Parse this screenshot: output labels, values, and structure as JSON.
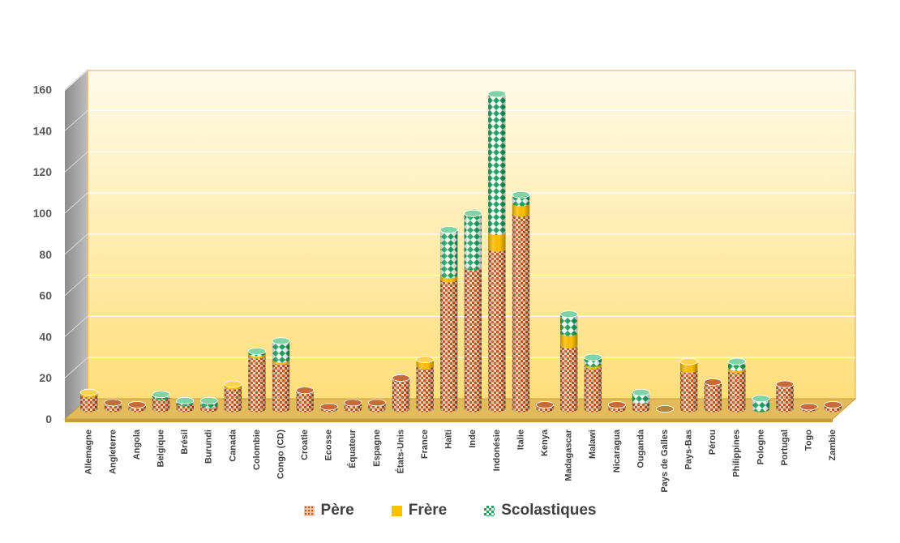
{
  "chart_data": {
    "type": "bar",
    "stacked": true,
    "three_d": true,
    "title": "",
    "xlabel": "",
    "ylabel": "",
    "ylim": [
      0,
      160
    ],
    "yticks": [
      0,
      20,
      40,
      60,
      80,
      100,
      120,
      140,
      160
    ],
    "grid": true,
    "legend_position": "bottom",
    "categories": [
      "Allemagne",
      "Angleterre",
      "Angola",
      "Belgique",
      "Brésil",
      "Burundi",
      "Canada",
      "Colombie",
      "Congo (CD)",
      "Croatie",
      "Ecosse",
      "Équateur",
      "Espagne",
      "États-Unis",
      "France",
      "Haïti",
      "Inde",
      "Indonésie",
      "Italie",
      "Kenya",
      "Madagascar",
      "Malawi",
      "Nicaragua",
      "Ouganda",
      "Pays de Galles",
      "Pays-Bas",
      "Pérou",
      "Philippines",
      "Pologne",
      "Portugal",
      "Togo",
      "Zambie"
    ],
    "series": [
      {
        "name": "Père",
        "color": "#c1531a",
        "values": [
          7,
          3,
          2,
          6,
          3,
          2,
          11,
          26,
          23,
          9,
          1,
          3,
          3,
          15,
          21,
          63,
          69,
          78,
          95,
          2,
          31,
          21,
          2,
          4,
          0,
          19,
          13,
          19,
          0,
          12,
          1,
          2
        ]
      },
      {
        "name": "Frère",
        "color": "#ffc000",
        "values": [
          1,
          0,
          0,
          0,
          0,
          0,
          1,
          1,
          1,
          0,
          0,
          0,
          0,
          0,
          3,
          2,
          0,
          8,
          5,
          0,
          6,
          1,
          0,
          0,
          0,
          4,
          0,
          1,
          0,
          0,
          0,
          0
        ]
      },
      {
        "name": "Scolastiques",
        "color": "#19a35a",
        "values": [
          0,
          0,
          0,
          1,
          1,
          2,
          0,
          1,
          9,
          0,
          0,
          0,
          0,
          0,
          0,
          22,
          26,
          67,
          4,
          0,
          9,
          3,
          0,
          4,
          0,
          0,
          0,
          3,
          5,
          0,
          0,
          0
        ]
      }
    ]
  }
}
